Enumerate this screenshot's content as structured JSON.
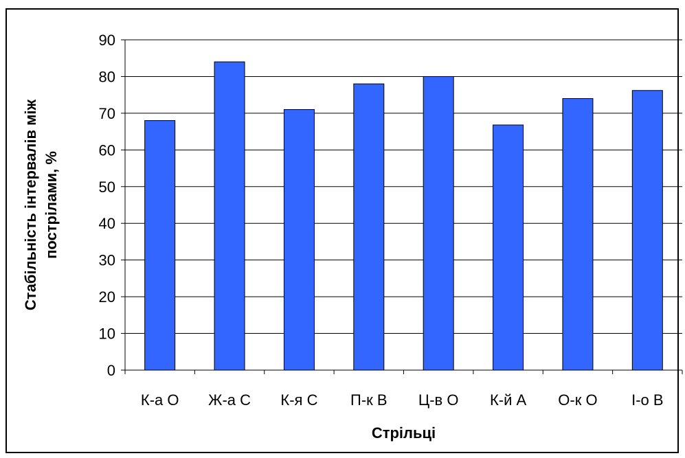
{
  "chart_data": {
    "type": "bar",
    "title": "",
    "xlabel": "Стрільці",
    "ylabel_line1": "Стабільність інтервалів між",
    "ylabel_line2": "пострілами, %",
    "categories": [
      "К-а О",
      "Ж-а С",
      "К-я С",
      "П-к В",
      "Ц-в О",
      "К-й А",
      "О-к О",
      "І-о В"
    ],
    "values": [
      68,
      84,
      71,
      78,
      80,
      66.8,
      74,
      76.2
    ],
    "ylim": [
      0,
      90
    ],
    "yticks": [
      0,
      10,
      20,
      30,
      40,
      50,
      60,
      70,
      80,
      90
    ],
    "grid": true,
    "legend": "none",
    "bar_color": "#3366FF"
  }
}
